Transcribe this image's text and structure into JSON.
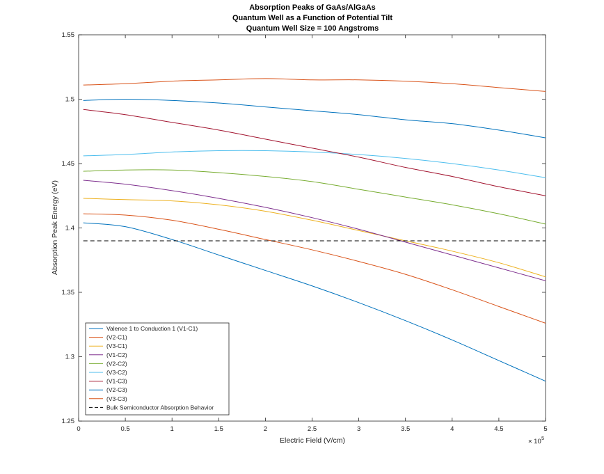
{
  "chart_data": {
    "type": "line",
    "title": [
      "Absorption Peaks of GaAs/AlGaAs",
      "Quantum Well as a Function of Potential Tilt",
      "Quantum Well Size = 100 Angstroms"
    ],
    "xlabel": "Electric Field (V/cm)",
    "ylabel": "Absorption Peak Energy (eV)",
    "x_exponent_label": "× 10",
    "x_exponent_power": "5",
    "xlim": [
      0,
      5
    ],
    "ylim": [
      1.25,
      1.55
    ],
    "xticks": [
      0,
      0.5,
      1,
      1.5,
      2,
      2.5,
      3,
      3.5,
      4,
      4.5,
      5
    ],
    "xtick_labels": [
      "0",
      "0.5",
      "1",
      "1.5",
      "2",
      "2.5",
      "3",
      "3.5",
      "4",
      "4.5",
      "5"
    ],
    "yticks": [
      1.25,
      1.3,
      1.35,
      1.4,
      1.45,
      1.5,
      1.55
    ],
    "ytick_labels": [
      "1.25",
      "1.3",
      "1.35",
      "1.4",
      "1.45",
      "1.5",
      "1.55"
    ],
    "x": [
      0.05,
      0.5,
      1.0,
      1.5,
      2.0,
      2.5,
      3.0,
      3.5,
      4.0,
      4.5,
      5.0
    ],
    "series": [
      {
        "name": "Valence 1 to Conduction 1 (V1-C1)",
        "color": "#0072BD",
        "values": [
          1.404,
          1.401,
          1.391,
          1.379,
          1.367,
          1.355,
          1.342,
          1.328,
          1.313,
          1.297,
          1.281
        ]
      },
      {
        "name": "(V2-C1)",
        "color": "#D95319",
        "values": [
          1.411,
          1.41,
          1.406,
          1.399,
          1.391,
          1.383,
          1.374,
          1.364,
          1.352,
          1.339,
          1.326
        ]
      },
      {
        "name": "(V3-C1)",
        "color": "#EDB120",
        "values": [
          1.423,
          1.422,
          1.421,
          1.418,
          1.413,
          1.406,
          1.398,
          1.39,
          1.382,
          1.373,
          1.362
        ]
      },
      {
        "name": "(V1-C2)",
        "color": "#7E2F8E",
        "values": [
          1.437,
          1.434,
          1.429,
          1.423,
          1.416,
          1.408,
          1.399,
          1.389,
          1.379,
          1.369,
          1.359
        ]
      },
      {
        "name": "(V2-C2)",
        "color": "#77AC30",
        "values": [
          1.444,
          1.445,
          1.445,
          1.443,
          1.44,
          1.436,
          1.43,
          1.424,
          1.418,
          1.411,
          1.403
        ]
      },
      {
        "name": "(V3-C2)",
        "color": "#4DBEEE",
        "values": [
          1.456,
          1.457,
          1.459,
          1.46,
          1.46,
          1.459,
          1.457,
          1.454,
          1.45,
          1.445,
          1.439
        ]
      },
      {
        "name": "(V1-C3)",
        "color": "#A2142F",
        "values": [
          1.492,
          1.488,
          1.482,
          1.476,
          1.469,
          1.462,
          1.455,
          1.447,
          1.44,
          1.432,
          1.425
        ]
      },
      {
        "name": "(V2-C3)",
        "color": "#0072BD",
        "values": [
          1.499,
          1.5,
          1.499,
          1.497,
          1.494,
          1.491,
          1.488,
          1.484,
          1.481,
          1.476,
          1.47
        ]
      },
      {
        "name": "(V3-C3)",
        "color": "#D95319",
        "values": [
          1.511,
          1.512,
          1.514,
          1.515,
          1.516,
          1.515,
          1.515,
          1.514,
          1.512,
          1.509,
          1.506
        ]
      },
      {
        "name": "Bulk Semiconductor Absorption Behavior",
        "color": "#000000",
        "dashed": true,
        "values": [
          1.39,
          1.39,
          1.39,
          1.39,
          1.39,
          1.39,
          1.39,
          1.39,
          1.39,
          1.39,
          1.39
        ]
      }
    ],
    "legend_position": "bottom-left",
    "grid": false
  }
}
